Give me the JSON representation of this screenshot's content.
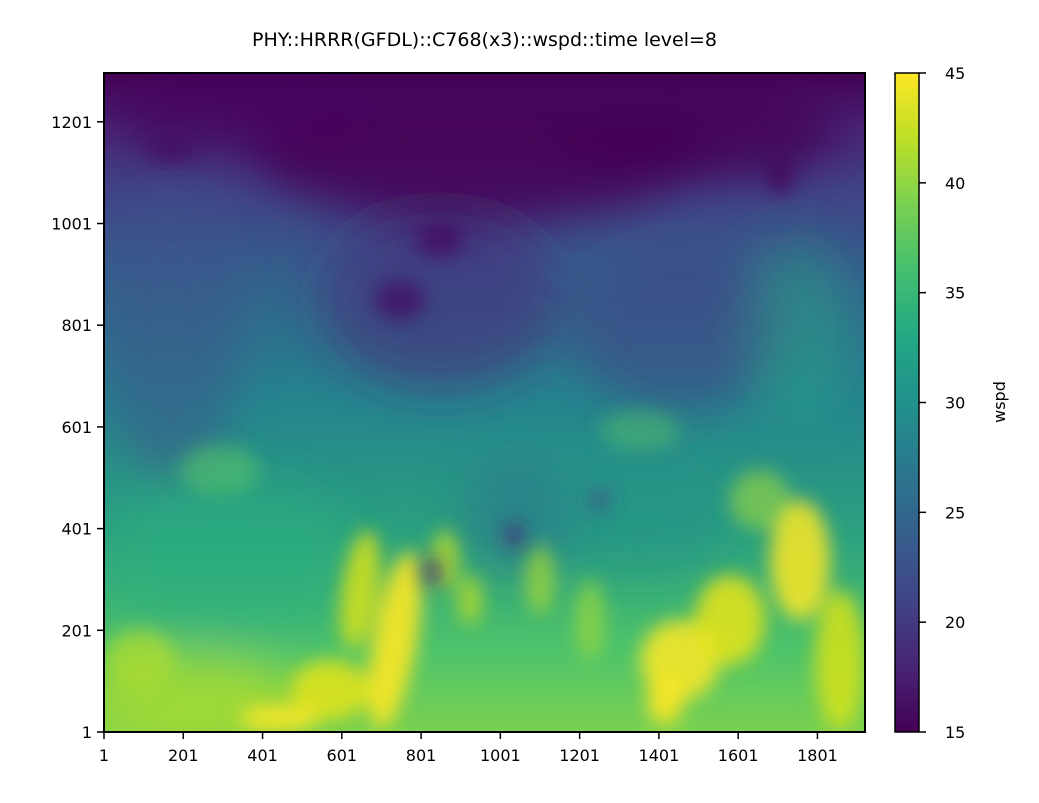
{
  "chart_data": {
    "type": "heatmap",
    "title": "PHY::HRRR(GFDL)::C768(x3)::wspd::time level=8",
    "xlabel": "",
    "ylabel": "",
    "x_ticks": [
      "1",
      "201",
      "401",
      "601",
      "801",
      "1001",
      "1201",
      "1401",
      "1601",
      "1801"
    ],
    "y_ticks": [
      "1",
      "201",
      "401",
      "601",
      "801",
      "1001",
      "1201"
    ],
    "xlim": [
      1,
      1921
    ],
    "ylim": [
      1,
      1297
    ],
    "colorbar": {
      "label": "wspd",
      "colormap": "viridis",
      "range": [
        15,
        45
      ],
      "ticks": [
        "15",
        "20",
        "25",
        "30",
        "35",
        "40",
        "45"
      ]
    },
    "field_description": "Wind speed field: low values (~15-20) across the top rows, rising to ~30-35 in the middle band and peaking near 45 in streaks along the lower rows, especially near x 600-800 and x 1400-1900.",
    "grid": false
  }
}
